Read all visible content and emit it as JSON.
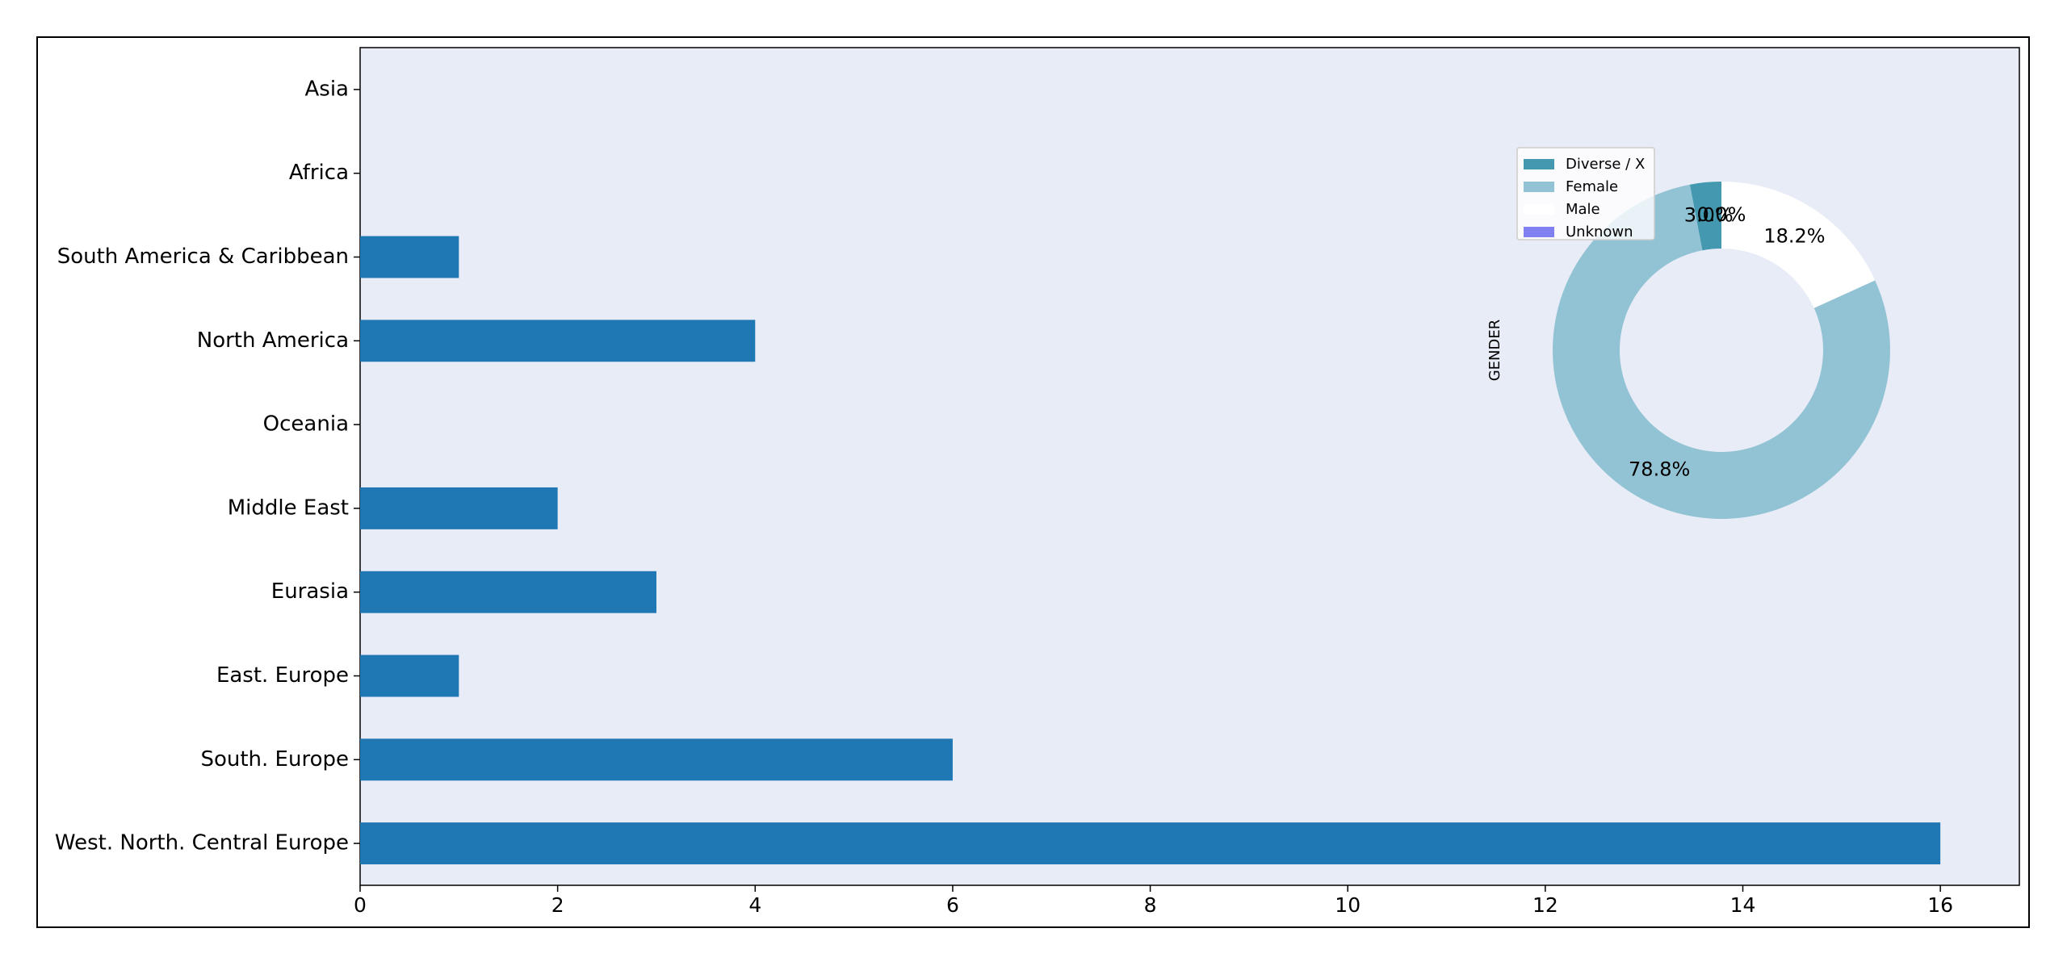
{
  "chart_data": [
    {
      "type": "bar",
      "orientation": "horizontal",
      "categories": [
        "West. North. Central Europe",
        "South. Europe",
        "East. Europe",
        "Eurasia",
        "Middle East",
        "Oceania",
        "North America",
        "South America & Caribbean",
        "Africa",
        "Asia"
      ],
      "values": [
        16,
        6,
        1,
        3,
        2,
        0,
        4,
        1,
        0,
        0
      ],
      "color": "#1f77b4",
      "xlim": [
        0,
        16.8
      ],
      "xticks": [
        0,
        2,
        4,
        6,
        8,
        10,
        12,
        14,
        16
      ]
    },
    {
      "type": "pie",
      "ylabel": "GENDER",
      "categories": [
        "Diverse / X",
        "Female",
        "Male",
        "Unknown"
      ],
      "values": [
        3.0,
        78.8,
        18.2,
        0.0
      ],
      "value_labels": [
        "3.0%",
        "78.8%",
        "18.2%",
        "0.0%"
      ],
      "colors": [
        "#4499b0",
        "#92c3d4",
        "#ffffff",
        "#8080f0"
      ]
    }
  ]
}
